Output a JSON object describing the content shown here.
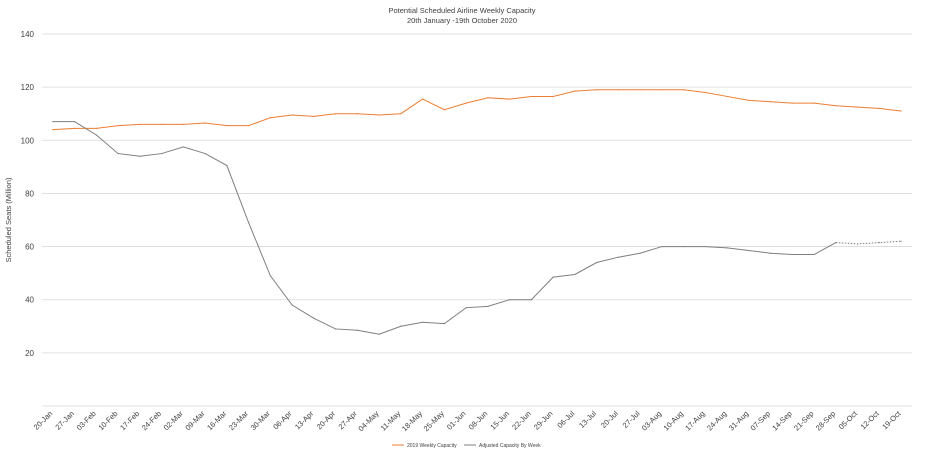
{
  "chart_data": {
    "type": "line",
    "title": "Potential Scheduled Airline Weekly Capacity",
    "subtitle": "20th January -19th October 2020",
    "xlabel": "",
    "ylabel": "Scheduled Seats (Million)",
    "ylim": [
      0,
      140
    ],
    "yticks": [
      20,
      40,
      60,
      80,
      100,
      120,
      140
    ],
    "grid": true,
    "legend_position": "bottom",
    "categories": [
      "20-Jan",
      "27-Jan",
      "03-Feb",
      "10-Feb",
      "17-Feb",
      "24-Feb",
      "02-Mar",
      "09-Mar",
      "16-Mar",
      "23-Mar",
      "30-Mar",
      "06-Apr",
      "13-Apr",
      "20-Apr",
      "27-Apr",
      "04-May",
      "11-May",
      "18-May",
      "25-May",
      "01-Jun",
      "08-Jun",
      "15-Jun",
      "22-Jun",
      "29-Jun",
      "06-Jul",
      "13-Jul",
      "20-Jul",
      "27-Jul",
      "03-Aug",
      "10-Aug",
      "17-Aug",
      "24-Aug",
      "31-Aug",
      "07-Sep",
      "14-Sep",
      "21-Sep",
      "28-Sep",
      "05-Oct",
      "12-Oct",
      "19-Oct"
    ],
    "series": [
      {
        "name": "2019 Weekly Capacity",
        "color": "#ed7d31",
        "values": [
          104,
          104.5,
          104.5,
          105.5,
          106,
          106,
          106,
          106.5,
          105.5,
          105.5,
          108.5,
          109.5,
          109,
          110,
          110,
          109.5,
          110,
          115.5,
          111.5,
          114,
          116,
          115.5,
          116.5,
          116.5,
          118.5,
          119,
          119,
          119,
          119,
          119,
          118,
          116.5,
          115,
          114.5,
          114,
          114,
          113,
          112.5,
          112,
          111
        ]
      },
      {
        "name": "Adjusted Capacity By Week",
        "color": "#7f7f7f",
        "values": [
          107,
          107,
          102,
          95,
          94,
          95,
          97.5,
          95,
          90.5,
          69,
          49,
          38,
          33,
          29,
          28.5,
          27,
          30,
          31.5,
          31,
          37,
          37.5,
          40,
          40,
          48.5,
          49.5,
          54,
          56,
          57.5,
          60,
          60,
          60,
          59.5,
          58.5,
          57.5,
          57,
          57,
          61.5,
          61,
          61.5,
          62
        ],
        "dotted_from_index": 36
      }
    ]
  }
}
